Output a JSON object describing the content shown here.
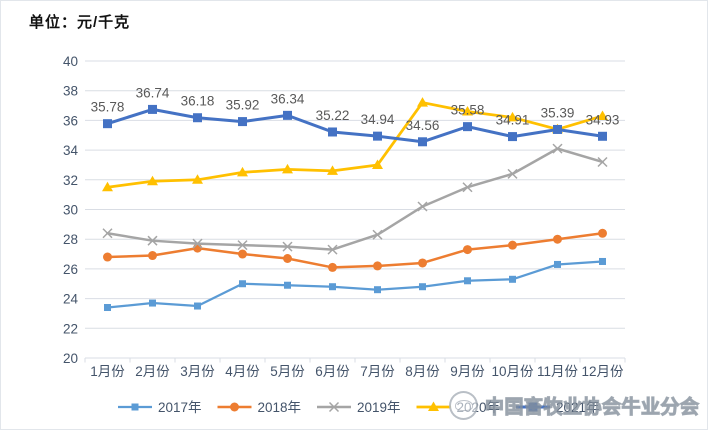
{
  "page": {
    "unit_label": "单位：元/千克"
  },
  "watermark": {
    "text": "中国畜牧业协会牛业分会",
    "logo": "cattle-association-emblem"
  },
  "colors": {
    "axis_text": "#44546A",
    "grid_line": "#D9DDE4",
    "data_label": "#595959",
    "legend_text": "#44546A"
  },
  "chart_data": {
    "type": "line",
    "title": "单位：元/千克",
    "categories": [
      "1月份",
      "2月份",
      "3月份",
      "4月份",
      "5月份",
      "6月份",
      "7月份",
      "8月份",
      "9月份",
      "10月份",
      "11月份",
      "12月份"
    ],
    "ylim": [
      20,
      40
    ],
    "ytick_step": 2,
    "ytick_labels": [
      "20",
      "22",
      "24",
      "26",
      "28",
      "30",
      "32",
      "34",
      "36",
      "38",
      "40"
    ],
    "grid": true,
    "legend_position": "bottom",
    "series": [
      {
        "name": "2017年",
        "color": "#5B9BD5",
        "marker": "square",
        "values": [
          23.4,
          23.7,
          23.5,
          25.0,
          24.9,
          24.8,
          24.6,
          24.8,
          25.2,
          25.3,
          26.3,
          26.5
        ]
      },
      {
        "name": "2018年",
        "color": "#ED7D31",
        "marker": "circle",
        "values": [
          26.8,
          26.9,
          27.4,
          27.0,
          26.7,
          26.1,
          26.2,
          26.4,
          27.3,
          27.6,
          28.0,
          28.4
        ]
      },
      {
        "name": "2019年",
        "color": "#A5A5A5",
        "marker": "x",
        "values": [
          28.4,
          27.9,
          27.7,
          27.6,
          27.5,
          27.3,
          28.3,
          30.2,
          31.5,
          32.4,
          34.1,
          33.2
        ]
      },
      {
        "name": "2020年",
        "color": "#FFC000",
        "marker": "triangle",
        "values": [
          31.5,
          31.9,
          32.0,
          32.5,
          32.7,
          32.6,
          33.0,
          37.2,
          36.6,
          36.2,
          35.4,
          36.3
        ]
      },
      {
        "name": "2021年",
        "color": "#4472C4",
        "marker": "square-large",
        "values": [
          35.78,
          36.74,
          36.18,
          35.92,
          36.34,
          35.22,
          34.94,
          34.56,
          35.58,
          34.91,
          35.39,
          34.93
        ],
        "data_labels": [
          "35.78",
          "36.74",
          "36.18",
          "35.92",
          "36.34",
          "35.22",
          "34.94",
          "34.56",
          "35.58",
          "34.91",
          "35.39",
          "34.93"
        ]
      }
    ]
  }
}
